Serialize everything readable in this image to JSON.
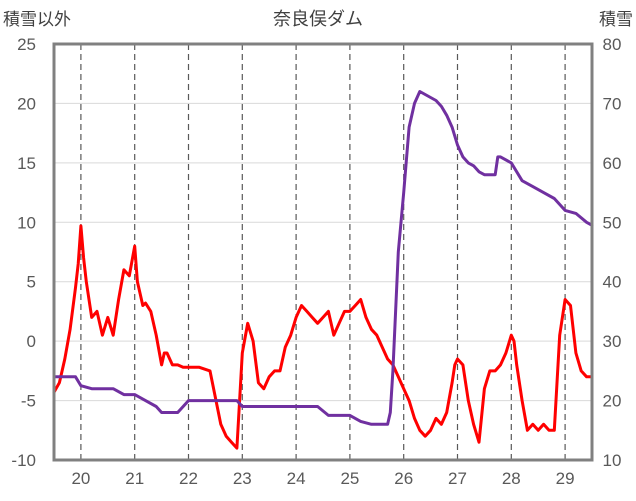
{
  "chart_data": {
    "type": "line",
    "title": "奈良俣ダム",
    "left_axis_label": "積雪以外",
    "right_axis_label": "積雪",
    "x_ticks": [
      "20",
      "21",
      "22",
      "23",
      "24",
      "25",
      "26",
      "27",
      "28",
      "29"
    ],
    "x_range": [
      19.5,
      29.5
    ],
    "y_left": {
      "min": -10,
      "max": 25,
      "ticks": [
        "-10",
        "-5",
        "0",
        "5",
        "10",
        "15",
        "20",
        "25"
      ]
    },
    "y_right": {
      "min": 10,
      "max": 80,
      "ticks": [
        "10",
        "20",
        "30",
        "40",
        "50",
        "60",
        "70",
        "80"
      ]
    },
    "grid": {
      "vertical": "dashed",
      "horizontal": "solid"
    },
    "series": [
      {
        "axis": "left",
        "color": "#ff0000",
        "x": [
          19.5,
          19.6,
          19.7,
          19.8,
          19.9,
          19.95,
          20.0,
          20.05,
          20.1,
          20.2,
          20.3,
          20.4,
          20.5,
          20.6,
          20.7,
          20.8,
          20.9,
          21.0,
          21.05,
          21.1,
          21.15,
          21.2,
          21.3,
          21.4,
          21.5,
          21.55,
          21.6,
          21.7,
          21.8,
          21.9,
          22.0,
          22.2,
          22.4,
          22.6,
          22.7,
          22.8,
          22.9,
          22.95,
          23.0,
          23.1,
          23.2,
          23.3,
          23.4,
          23.5,
          23.6,
          23.7,
          23.8,
          23.9,
          24.0,
          24.1,
          24.2,
          24.3,
          24.4,
          24.5,
          24.6,
          24.7,
          24.8,
          24.9,
          25.0,
          25.1,
          25.2,
          25.3,
          25.4,
          25.5,
          25.6,
          25.7,
          25.8,
          25.9,
          26.0,
          26.1,
          26.2,
          26.3,
          26.4,
          26.5,
          26.6,
          26.7,
          26.8,
          26.9,
          26.95,
          27.0,
          27.1,
          27.2,
          27.3,
          27.4,
          27.5,
          27.6,
          27.7,
          27.8,
          27.9,
          28.0,
          28.05,
          28.1,
          28.2,
          28.3,
          28.4,
          28.5,
          28.6,
          28.7,
          28.8,
          28.9,
          29.0,
          29.1,
          29.2,
          29.3,
          29.4,
          29.5
        ],
        "values": [
          -4.3,
          -3.5,
          -1.5,
          1.0,
          4.5,
          6.5,
          9.7,
          7.0,
          5.0,
          2.0,
          2.5,
          0.5,
          2.0,
          0.5,
          3.5,
          6.0,
          5.5,
          8.0,
          5.0,
          4.0,
          3.0,
          3.2,
          2.5,
          0.5,
          -2.0,
          -1.0,
          -1.0,
          -2.0,
          -2.0,
          -2.2,
          -2.2,
          -2.2,
          -2.5,
          -7.0,
          -8.0,
          -8.5,
          -9.0,
          -5.0,
          -1.0,
          1.5,
          0.0,
          -3.5,
          -4.0,
          -3.0,
          -2.5,
          -2.5,
          -0.5,
          0.5,
          2.0,
          3.0,
          2.5,
          2.0,
          1.5,
          2.0,
          2.5,
          0.5,
          1.5,
          2.5,
          2.5,
          3.0,
          3.5,
          2.0,
          1.0,
          0.5,
          -0.5,
          -1.5,
          -2.0,
          -3.0,
          -4.0,
          -5.0,
          -6.5,
          -7.5,
          -8.0,
          -7.5,
          -6.5,
          -7.0,
          -6.0,
          -3.5,
          -2.0,
          -1.5,
          -2.0,
          -5.0,
          -7.0,
          -8.5,
          -4.0,
          -2.5,
          -2.5,
          -2.0,
          -1.0,
          0.5,
          0.0,
          -2.0,
          -5.0,
          -7.5,
          -7.0,
          -7.5,
          -7.0,
          -7.5,
          -7.5,
          0.5,
          3.5,
          3.0,
          -1.0,
          -2.5,
          -3.0,
          -3.0
        ]
      },
      {
        "axis": "right",
        "color": "#7030a0",
        "x": [
          19.5,
          19.9,
          20.0,
          20.2,
          20.4,
          20.6,
          20.8,
          21.0,
          21.2,
          21.4,
          21.5,
          21.7,
          21.8,
          22.0,
          22.2,
          22.4,
          22.6,
          22.8,
          22.9,
          23.0,
          23.2,
          23.4,
          23.6,
          23.8,
          24.0,
          24.2,
          24.4,
          24.6,
          24.8,
          25.0,
          25.2,
          25.4,
          25.6,
          25.7,
          25.75,
          25.8,
          25.85,
          25.9,
          26.0,
          26.1,
          26.2,
          26.3,
          26.4,
          26.5,
          26.6,
          26.7,
          26.8,
          26.9,
          27.0,
          27.1,
          27.2,
          27.3,
          27.4,
          27.5,
          27.6,
          27.7,
          27.75,
          27.8,
          28.0,
          28.2,
          28.4,
          28.6,
          28.8,
          29.0,
          29.2,
          29.4,
          29.5
        ],
        "values": [
          24.0,
          24.0,
          22.5,
          22.0,
          22.0,
          22.0,
          21.0,
          21.0,
          20.0,
          19.0,
          18.0,
          18.0,
          18.0,
          20.0,
          20.0,
          20.0,
          20.0,
          20.0,
          20.0,
          19.0,
          19.0,
          19.0,
          19.0,
          19.0,
          19.0,
          19.0,
          19.0,
          17.5,
          17.5,
          17.5,
          16.5,
          16.0,
          16.0,
          16.0,
          18.0,
          25.0,
          35.0,
          45.0,
          55.0,
          66.0,
          70.0,
          72.0,
          71.5,
          71.0,
          70.5,
          69.5,
          68.0,
          66.0,
          63.0,
          61.0,
          60.0,
          59.5,
          58.5,
          58.0,
          58.0,
          58.0,
          61.0,
          61.0,
          60.0,
          57.0,
          56.0,
          55.0,
          54.0,
          52.0,
          51.5,
          50.0,
          49.5
        ]
      }
    ]
  }
}
